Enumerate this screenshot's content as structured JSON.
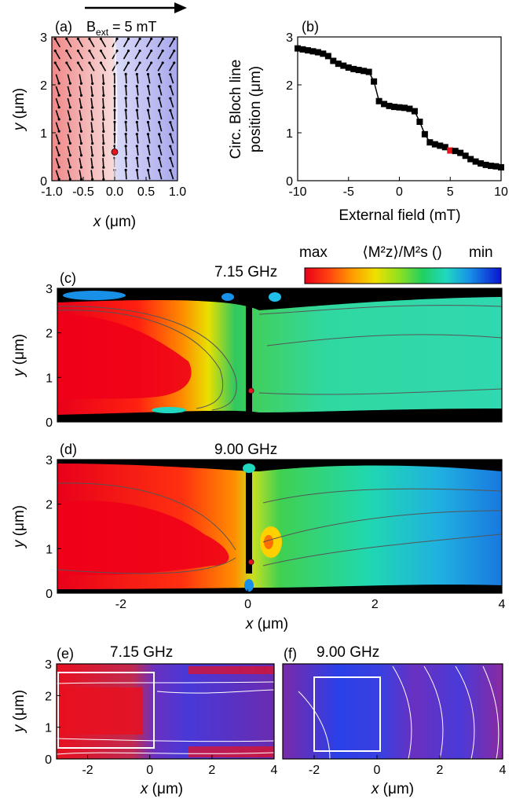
{
  "colors": {
    "max": "#e8001a",
    "min": "#0a14d0",
    "domain_left": "#f2a0a0",
    "domain_right": "#b4b4f0",
    "marker_red": "#e8151c",
    "marker_black": "#000000"
  },
  "panels": {
    "a": {
      "label": "(a)",
      "field_label_main": "B",
      "field_label_sub": "ext",
      "field_label_rest": " = 5 mT",
      "xlabel_italic": "x",
      "xlabel_unit": " (μm)",
      "ylabel_italic": "y",
      "ylabel_unit": " (μm)"
    },
    "b": {
      "label": "(b)",
      "xlabel": "External field (mT)",
      "ylabel_line1": "Circ. Bloch line",
      "ylabel_line2": "position (μm)"
    },
    "c": {
      "label": "(c)",
      "freq": "7.15 GHz",
      "ylabel_italic": "y",
      "ylabel_unit": " (μm)"
    },
    "d": {
      "label": "(d)",
      "freq": "9.00 GHz",
      "ylabel_italic": "y",
      "ylabel_unit": " (μm)",
      "xlabel_italic": "x",
      "xlabel_unit": " (μm)"
    },
    "e": {
      "label": "(e)",
      "freq": "7.15 GHz",
      "xlabel_italic": "x",
      "xlabel_unit": " (μm)",
      "ylabel_italic": "y",
      "ylabel_unit": " (μm)"
    },
    "f": {
      "label": "(f)",
      "freq": "9.00 GHz",
      "xlabel_italic": "x",
      "xlabel_unit": " (μm)"
    }
  },
  "colorbar": {
    "max_label": "max",
    "min_label": "min",
    "title": "⟨M²z⟩/M²s ()"
  },
  "chart_data": [
    {
      "type": "heatmap",
      "panel": "a",
      "xlim": [
        -1.0,
        1.0
      ],
      "ylim": [
        0,
        3
      ],
      "x_ticks": [
        "-1.0",
        "-0.5",
        "0.0",
        "0.5",
        "1.0"
      ],
      "y_ticks": [
        "0",
        "1",
        "2",
        "3"
      ],
      "marker": {
        "x": 0.0,
        "y": 0.6
      }
    },
    {
      "type": "line",
      "panel": "b",
      "xlim": [
        -10,
        10
      ],
      "ylim": [
        0,
        3
      ],
      "x_ticks": [
        "-10",
        "-5",
        "0",
        "5",
        "10"
      ],
      "y_ticks": [
        "0",
        "1",
        "2",
        "3"
      ],
      "x": [
        -10,
        -9.5,
        -9,
        -8.5,
        -8,
        -7.5,
        -7,
        -6.5,
        -6,
        -5.5,
        -5,
        -4.5,
        -4,
        -3.5,
        -3,
        -2.5,
        -2,
        -1.5,
        -1,
        -0.5,
        0,
        0.5,
        1,
        1.5,
        2,
        2.5,
        3,
        3.5,
        4,
        4.5,
        5,
        5.5,
        6,
        6.5,
        7,
        7.5,
        8,
        8.5,
        9,
        9.5,
        10
      ],
      "y": [
        2.76,
        2.74,
        2.72,
        2.7,
        2.68,
        2.65,
        2.6,
        2.5,
        2.44,
        2.4,
        2.36,
        2.33,
        2.31,
        2.29,
        2.27,
        2.07,
        1.66,
        1.6,
        1.56,
        1.54,
        1.53,
        1.52,
        1.5,
        1.45,
        1.23,
        0.97,
        0.8,
        0.76,
        0.73,
        0.7,
        0.63,
        0.62,
        0.58,
        0.52,
        0.45,
        0.4,
        0.36,
        0.33,
        0.31,
        0.3,
        0.28
      ],
      "highlight": {
        "x": 5,
        "y": 0.63
      }
    },
    {
      "type": "heatmap",
      "panel": "c",
      "freq": "7.15 GHz",
      "xlim": [
        -3,
        4
      ],
      "ylim": [
        0,
        3
      ],
      "y_ticks": [
        "0",
        "1",
        "2",
        "3"
      ],
      "marker": {
        "x": 0.05,
        "y": 0.7
      }
    },
    {
      "type": "heatmap",
      "panel": "d",
      "freq": "9.00 GHz",
      "xlim": [
        -3,
        4
      ],
      "ylim": [
        0,
        3
      ],
      "x_ticks": [
        "-2",
        "0",
        "2",
        "4"
      ],
      "y_ticks": [
        "0",
        "1",
        "2",
        "3"
      ],
      "marker": {
        "x": 0.05,
        "y": 0.7
      }
    },
    {
      "type": "heatmap",
      "panel": "e",
      "freq": "7.15 GHz",
      "xlim": [
        -3,
        4
      ],
      "ylim": [
        0,
        3
      ],
      "x_ticks": [
        "-2",
        "0",
        "2",
        "4"
      ],
      "y_ticks": [
        "0",
        "1",
        "2",
        "3"
      ]
    },
    {
      "type": "heatmap",
      "panel": "f",
      "freq": "9.00 GHz",
      "xlim": [
        -3,
        4
      ],
      "ylim": [
        0,
        3
      ],
      "x_ticks": [
        "-2",
        "0",
        "2",
        "4"
      ]
    }
  ]
}
